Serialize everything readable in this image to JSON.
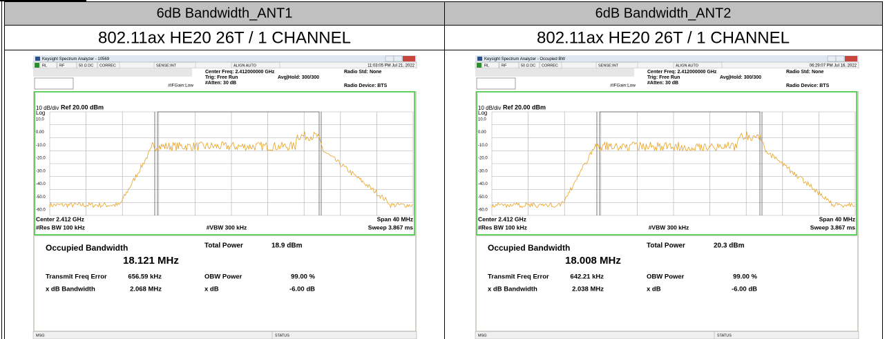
{
  "table": {
    "headers": [
      "6dB Bandwidth_ANT1",
      "6dB Bandwidth_ANT2"
    ],
    "subtitles": [
      "802.11ax HE20 26T / 1 CHANNEL",
      "802.11ax HE20 26T / 1 CHANNEL"
    ]
  },
  "panels": [
    {
      "window_title": "Keysight Spectrum Analyzer - 10569",
      "timestamp": "11:03:05 PM Jul 21, 2022",
      "toolbar": [
        "RL",
        "RF",
        "50 Ω DC",
        "CORREC",
        "SENSE:INT",
        "ALIGN AUTO"
      ],
      "center_freq": "Center Freq: 2.412000000 GHz",
      "trig": "Trig: Free Run",
      "avg_hold": "Avg|Hold: 300/300",
      "if_gain": "#IFGain:Low",
      "atten": "#Atten: 30 dB",
      "radio_std": "Radio Std: None",
      "radio_device": "Radio Device: BTS",
      "scale": "10 dB/div",
      "log": "Log",
      "ref_level": "Ref 20.00 dBm",
      "y_labels": [
        "10.0",
        "0.00",
        "-10.0",
        "-20.0",
        "-30.0",
        "-40.0",
        "-50.0",
        "-60.0",
        "-70.0"
      ],
      "center": "Center 2.412 GHz",
      "span": "Span 40 MHz",
      "res_bw": "#Res BW 100 kHz",
      "vbw": "#VBW 300 kHz",
      "sweep": "Sweep 3.867 ms",
      "results": {
        "obw_label": "Occupied Bandwidth",
        "obw": "18.121 MHz",
        "total_power_label": "Total Power",
        "total_power": "18.9 dBm",
        "rows": [
          [
            "Transmit Freq Error",
            "656.59 kHz",
            "OBW Power",
            "99.00 %"
          ],
          [
            "x dB Bandwidth",
            "2.068 MHz",
            "x dB",
            "-6.00 dB"
          ]
        ]
      },
      "msg": "MSG",
      "status": "STATUS"
    },
    {
      "window_title": "Keysight Spectrum Analyzer - Occupied BW",
      "timestamp": "06:29:07 PM Jul 16, 2022",
      "toolbar": [
        "RL",
        "RF",
        "50 Ω DC",
        "CORREC",
        "SENSE:INT",
        "ALIGN AUTO"
      ],
      "center_freq": "Center Freq: 2.412000000 GHz",
      "trig": "Trig: Free Run",
      "avg_hold": "Avg|Hold: 300/300",
      "if_gain": "#IFGain:Low",
      "atten": "#Atten: 30 dB",
      "radio_std": "Radio Std: None",
      "radio_device": "Radio Device: BTS",
      "scale": "10 dB/div",
      "log": "Log",
      "ref_level": "Ref 20.00 dBm",
      "y_labels": [
        "10.0",
        "0.00",
        "-10.0",
        "-20.0",
        "-30.0",
        "-40.0",
        "-50.0",
        "-60.0",
        "-70.0"
      ],
      "center": "Center 2.412 GHz",
      "span": "Span 40 MHz",
      "res_bw": "#Res BW 100 kHz",
      "vbw": "#VBW 300 kHz",
      "sweep": "Sweep 3.867 ms",
      "results": {
        "obw_label": "Occupied Bandwidth",
        "obw": "18.008 MHz",
        "total_power_label": "Total Power",
        "total_power": "20.3 dBm",
        "rows": [
          [
            "Transmit Freq Error",
            "642.21 kHz",
            "OBW Power",
            "99.00 %"
          ],
          [
            "x dB Bandwidth",
            "2.038 MHz",
            "x dB",
            "-6.00 dB"
          ]
        ]
      },
      "msg": "MSG",
      "status": "STATUS"
    }
  ]
}
